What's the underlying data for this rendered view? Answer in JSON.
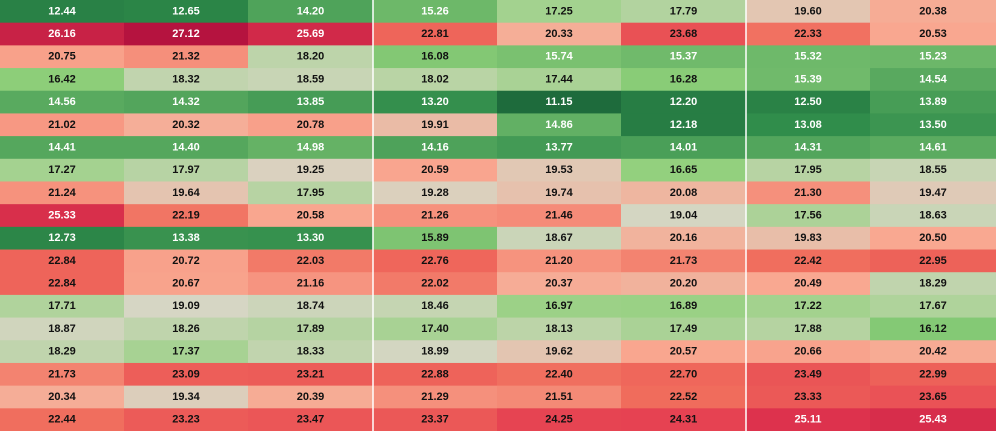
{
  "chart_data": {
    "type": "heatmap",
    "title": "",
    "xlabel": "",
    "ylabel": "",
    "color_scale": {
      "stops": [
        {
          "value": 11.15,
          "color": "#1e6b3c"
        },
        {
          "value": 13.0,
          "color": "#2e8b4a"
        },
        {
          "value": 16.5,
          "color": "#8fd07a"
        },
        {
          "value": 19.1,
          "color": "#d6d6c4"
        },
        {
          "value": 20.5,
          "color": "#f9a891"
        },
        {
          "value": 22.5,
          "color": "#f06c5c"
        },
        {
          "value": 24.8,
          "color": "#e3374f"
        },
        {
          "value": 27.12,
          "color": "#b5133f"
        }
      ],
      "light_text_above": 24.5,
      "light_text_below": 15.8
    },
    "values": [
      [
        12.44,
        12.65,
        14.2,
        15.26,
        17.25,
        17.79,
        19.6,
        20.38
      ],
      [
        26.16,
        27.12,
        25.69,
        22.81,
        20.33,
        23.68,
        22.33,
        20.53
      ],
      [
        20.75,
        21.32,
        18.2,
        16.08,
        15.74,
        15.37,
        15.32,
        15.23
      ],
      [
        16.42,
        18.32,
        18.59,
        18.02,
        17.44,
        16.28,
        15.39,
        14.54
      ],
      [
        14.56,
        14.32,
        13.85,
        13.2,
        11.15,
        12.2,
        12.5,
        13.89
      ],
      [
        21.02,
        20.32,
        20.78,
        19.91,
        14.86,
        12.18,
        13.08,
        13.5
      ],
      [
        14.41,
        14.4,
        14.98,
        14.16,
        13.77,
        14.01,
        14.31,
        14.61
      ],
      [
        17.27,
        17.97,
        19.25,
        20.59,
        19.53,
        16.65,
        17.95,
        18.55
      ],
      [
        21.24,
        19.64,
        17.95,
        19.28,
        19.74,
        20.08,
        21.3,
        19.47
      ],
      [
        25.33,
        22.19,
        20.58,
        21.26,
        21.46,
        19.04,
        17.56,
        18.63
      ],
      [
        12.73,
        13.38,
        13.3,
        15.89,
        18.67,
        20.16,
        19.83,
        20.5
      ],
      [
        22.84,
        20.72,
        22.03,
        22.76,
        21.2,
        21.73,
        22.42,
        22.95
      ],
      [
        22.84,
        20.67,
        21.16,
        22.02,
        20.37,
        20.2,
        20.49,
        18.29
      ],
      [
        17.71,
        19.09,
        18.74,
        18.46,
        16.97,
        16.89,
        17.22,
        17.67
      ],
      [
        18.87,
        18.26,
        17.89,
        17.4,
        18.13,
        17.49,
        17.88,
        16.12
      ],
      [
        18.29,
        17.37,
        18.33,
        18.99,
        19.62,
        20.57,
        20.66,
        20.42
      ],
      [
        21.73,
        23.09,
        23.21,
        22.88,
        22.4,
        22.7,
        23.49,
        22.99
      ],
      [
        20.34,
        19.34,
        20.39,
        21.29,
        21.51,
        22.52,
        23.33,
        23.65
      ],
      [
        22.44,
        23.23,
        23.47,
        23.37,
        24.25,
        24.31,
        25.11,
        25.43
      ]
    ]
  }
}
